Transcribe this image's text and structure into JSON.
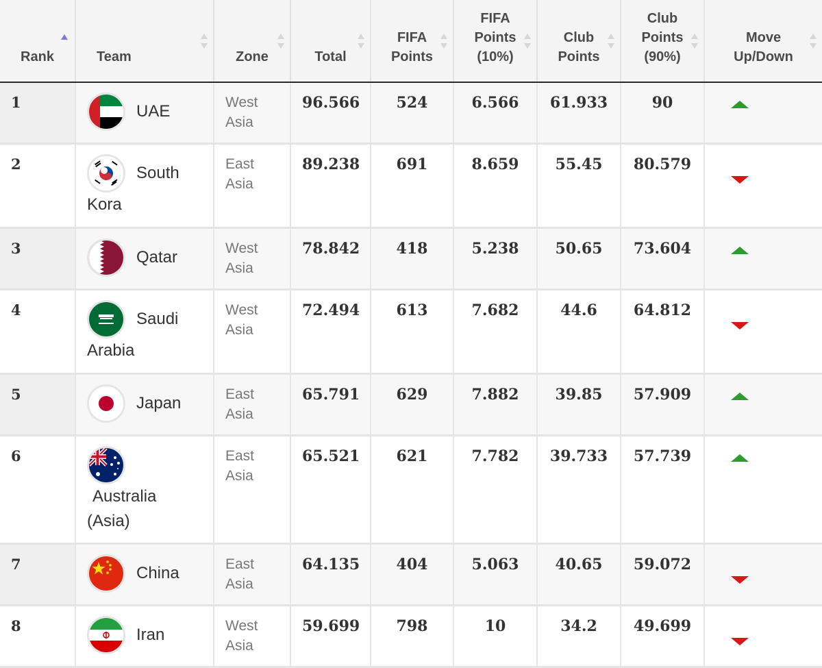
{
  "columns": {
    "rank": "Rank",
    "team": "Team",
    "zone": "Zone",
    "total": "Total",
    "fifa_l1": "FIFA",
    "fifa_l2": "Points",
    "fifa10_l1": "FIFA",
    "fifa10_l2": "Points",
    "fifa10_l3": "(10%)",
    "club_l1": "Club",
    "club_l2": "Points",
    "club90_l1": "Club",
    "club90_l2": "Points",
    "club90_l3": "(90%)",
    "move_l1": "Move",
    "move_l2": "Up/Down"
  },
  "colors": {
    "up": "#2f9a2f",
    "down": "#d81818",
    "sort_active": "#7b78d8"
  },
  "rows": [
    {
      "rank": "1",
      "team_l1": "UAE",
      "team_l2": "",
      "team_l3": "",
      "zone_l1": "West",
      "zone_l2": "Asia",
      "total": "96.566",
      "fifa": "524",
      "fifa10": "6.566",
      "club": "61.933",
      "club90": "90",
      "move": "up",
      "flag": "uae-flag-icon"
    },
    {
      "rank": "2",
      "team_l1": "South",
      "team_l2": "Kora",
      "team_l3": "",
      "zone_l1": "East",
      "zone_l2": "Asia",
      "total": "89.238",
      "fifa": "691",
      "fifa10": "8.659",
      "club": "55.45",
      "club90": "80.579",
      "move": "down",
      "flag": "south-korea-flag-icon"
    },
    {
      "rank": "3",
      "team_l1": "Qatar",
      "team_l2": "",
      "team_l3": "",
      "zone_l1": "West",
      "zone_l2": "Asia",
      "total": "78.842",
      "fifa": "418",
      "fifa10": "5.238",
      "club": "50.65",
      "club90": "73.604",
      "move": "up",
      "flag": "qatar-flag-icon"
    },
    {
      "rank": "4",
      "team_l1": "Saudi",
      "team_l2": "Arabia",
      "team_l3": "",
      "zone_l1": "West",
      "zone_l2": "Asia",
      "total": "72.494",
      "fifa": "613",
      "fifa10": "7.682",
      "club": "44.6",
      "club90": "64.812",
      "move": "down",
      "flag": "saudi-arabia-flag-icon"
    },
    {
      "rank": "5",
      "team_l1": "Japan",
      "team_l2": "",
      "team_l3": "",
      "zone_l1": "East",
      "zone_l2": "Asia",
      "total": "65.791",
      "fifa": "629",
      "fifa10": "7.882",
      "club": "39.85",
      "club90": "57.909",
      "move": "up",
      "flag": "japan-flag-icon"
    },
    {
      "rank": "6",
      "team_l1": "",
      "team_l2": "Australia",
      "team_l3": "(Asia)",
      "zone_l1": "East",
      "zone_l2": "Asia",
      "total": "65.521",
      "fifa": "621",
      "fifa10": "7.782",
      "club": "39.733",
      "club90": "57.739",
      "move": "up",
      "flag": "australia-flag-icon"
    },
    {
      "rank": "7",
      "team_l1": "China",
      "team_l2": "",
      "team_l3": "",
      "zone_l1": "East",
      "zone_l2": "Asia",
      "total": "64.135",
      "fifa": "404",
      "fifa10": "5.063",
      "club": "40.65",
      "club90": "59.072",
      "move": "down",
      "flag": "china-flag-icon"
    },
    {
      "rank": "8",
      "team_l1": "Iran",
      "team_l2": "",
      "team_l3": "",
      "zone_l1": "West",
      "zone_l2": "Asia",
      "total": "59.699",
      "fifa": "798",
      "fifa10": "10",
      "club": "34.2",
      "club90": "49.699",
      "move": "down",
      "flag": "iran-flag-icon"
    }
  ]
}
